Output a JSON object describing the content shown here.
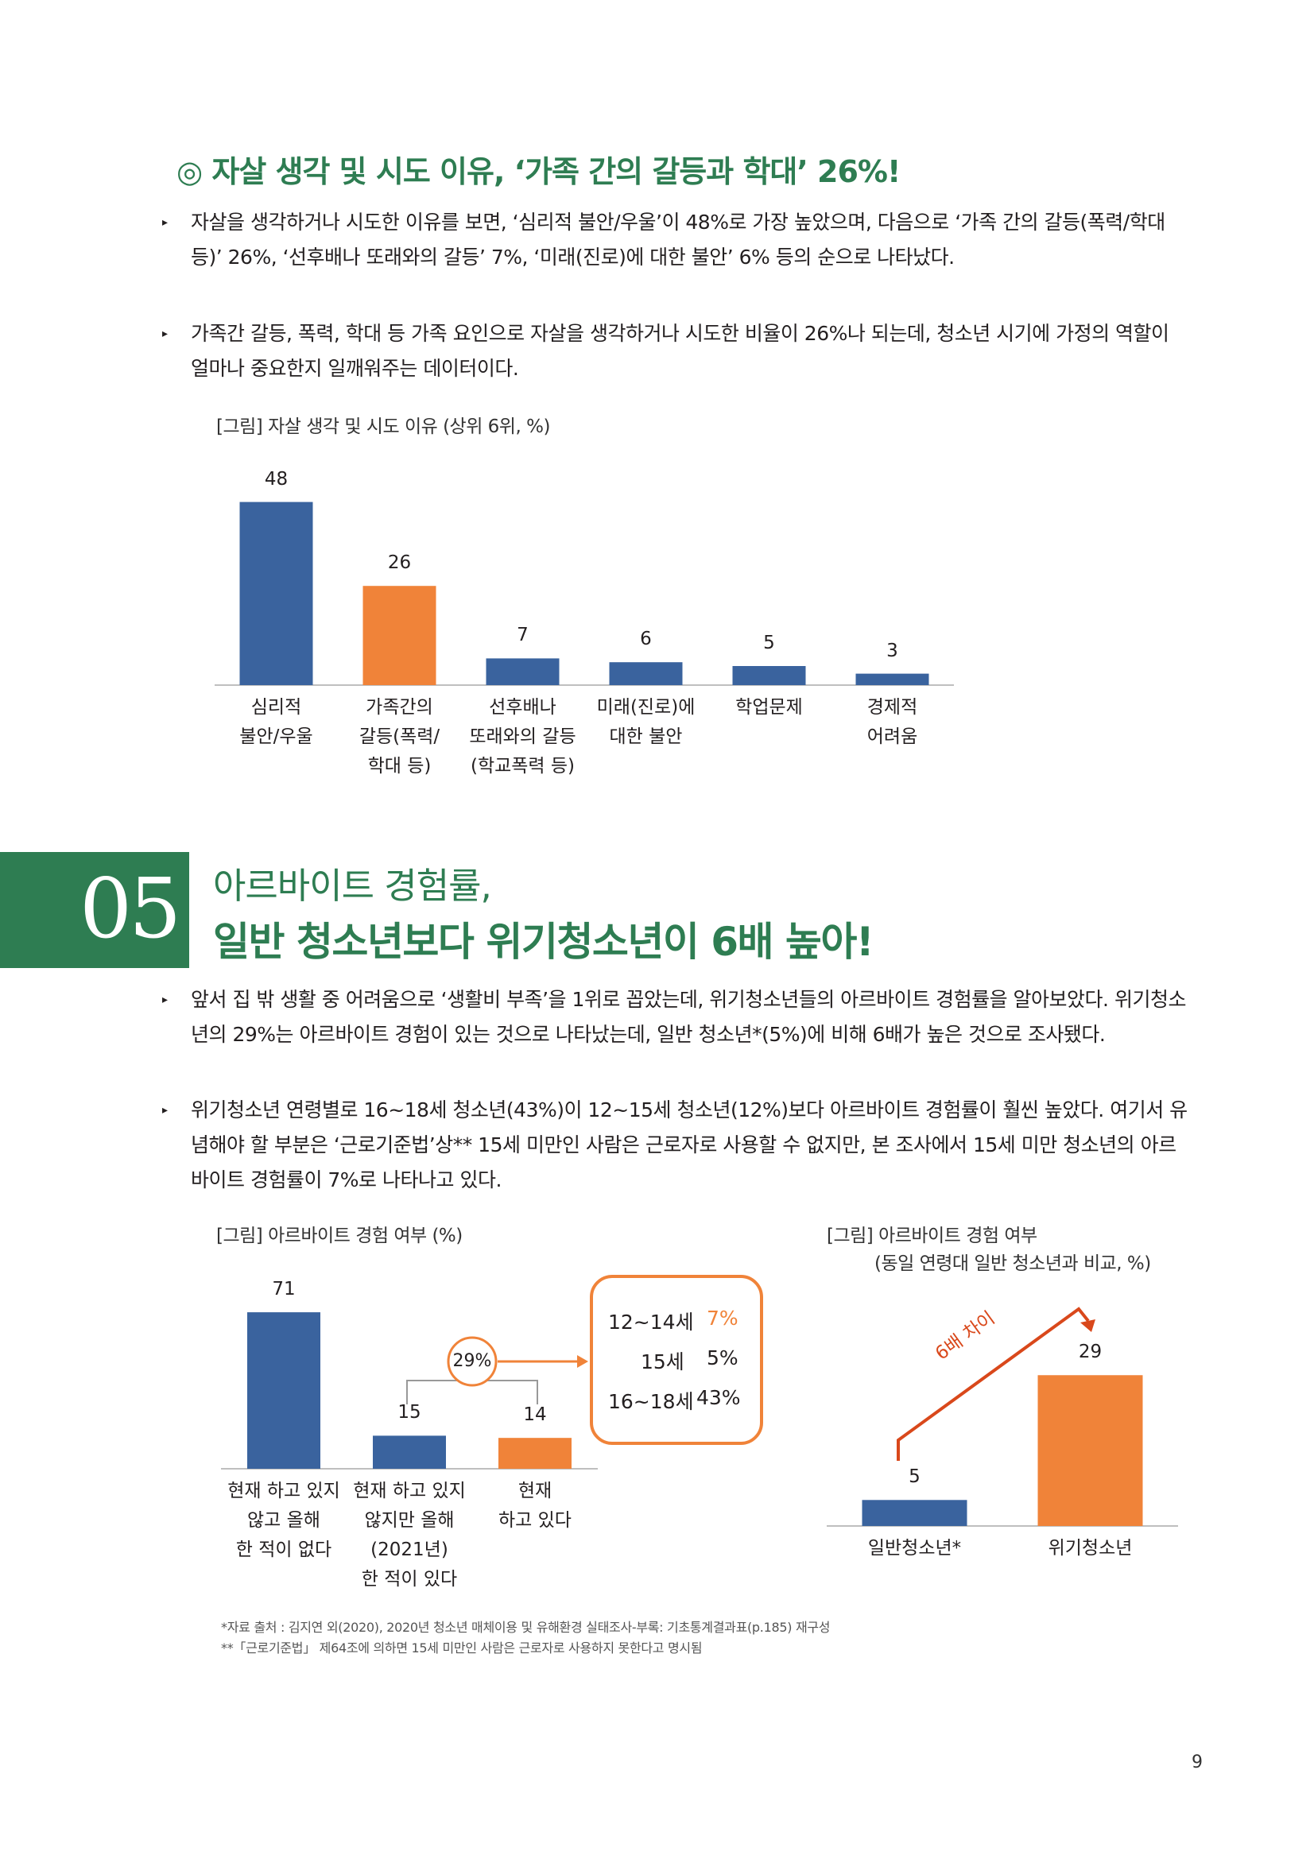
{
  "heading1": "◎ 자살 생각 및 시도 이유, ‘가족 간의 갈등과 학대’ 26%!",
  "paragraphs1": [
    "자살을 생각하거나 시도한 이유를 보면, ‘심리적 불안/우울’이 48%로 가장 높았으며, 다음으로 ‘가족 간의 갈등(폭력/학대 등)’ 26%, ‘선후배나 또래와의 갈등’ 7%, ‘미래(진로)에 대한 불안’ 6% 등의 순으로 나타났다.",
    "가족간 갈등, 폭력, 학대 등 가족 요인으로 자살을 생각하거나 시도한 비율이 26%나 되는데, 청소년 시기에 가정의 역할이 얼마나 중요한지 일깨워주는 데이터이다."
  ],
  "bullet_symbol": "▸",
  "figure1_caption": "[그림] 자살 생각 및 시도 이유 (상위 6위, %)",
  "section": {
    "number": "05",
    "title_line1": "아르바이트 경험률,",
    "title_line2": "일반 청소년보다 위기청소년이 6배 높아!"
  },
  "paragraphs2": [
    "앞서 집 밖 생활 중 어려움으로 ‘생활비 부족’을 1위로 꼽았는데, 위기청소년들의 아르바이트 경험률을 알아보았다. 위기청소년의 29%는 아르바이트 경험이 있는 것으로 나타났는데, 일반 청소년*(5%)에 비해 6배가 높은 것으로 조사됐다.",
    "위기청소년 연령별로 16~18세 청소년(43%)이 12~15세 청소년(12%)보다 아르바이트 경험률이 훨씬 높았다. 여기서 유념해야 할 부분은 ‘근로기준법’상** 15세 미만인 사람은 근로자로 사용할 수 없지만, 본 조사에서 15세 미만 청소년의 아르바이트 경험률이 7%로 나타나고 있다."
  ],
  "figure2_caption": "[그림] 아르바이트 경험 여부 (%)",
  "figure3_caption_line1": "[그림] 아르바이트 경험 여부",
  "figure3_caption_line2": "(동일 연령대 일반 청소년과 비교, %)",
  "callout": {
    "bubble": "29%",
    "rows": [
      {
        "age": "12~14세",
        "value": "7%"
      },
      {
        "age": "15세",
        "value": "5%"
      },
      {
        "age": "16~18세",
        "value": "43%"
      }
    ]
  },
  "diff_label": "6배 차이",
  "footnotes": [
    "*자료 출처 : 김지연 외(2020), 2020년 청소년 매체이용 및 유해환경 실태조사-부록: 기초통계결과표(p.185) 재구성",
    "**「근로기준법」 제64조에 의하면 15세 미만인 사람은 근로자로 사용하지 못한다고 명시됨"
  ],
  "page_number": "9",
  "colors": {
    "green": "#2e7d52",
    "blue": "#3a639e",
    "orange": "#f08339",
    "axis": "#bfbfbf"
  },
  "chart_data": [
    {
      "type": "bar",
      "categories": [
        "심리적\n불안/우울",
        "가족간의\n갈등(폭력/\n학대 등)",
        "선후배나\n또래와의 갈등\n(학교폭력 등)",
        "미래(진로)에\n대한 불안",
        "학업문제",
        "경제적\n어려움"
      ],
      "values": [
        48,
        26,
        7,
        6,
        5,
        3
      ],
      "highlight_index": 1,
      "ylim": [
        0,
        50
      ]
    },
    {
      "type": "bar",
      "categories": [
        "현재 하고 있지\n않고 올해\n한 적이 없다",
        "현재 하고 있지\n않지만 올해\n(2021년)\n한 적이 있다",
        "현재\n하고 있다"
      ],
      "values": [
        71,
        15,
        14
      ],
      "highlight_index": 2,
      "ylim": [
        0,
        75
      ]
    },
    {
      "type": "bar",
      "categories": [
        "일반청소년*",
        "위기청소년"
      ],
      "values": [
        5,
        29
      ],
      "highlight_index": 1,
      "ylim": [
        0,
        35
      ]
    }
  ]
}
